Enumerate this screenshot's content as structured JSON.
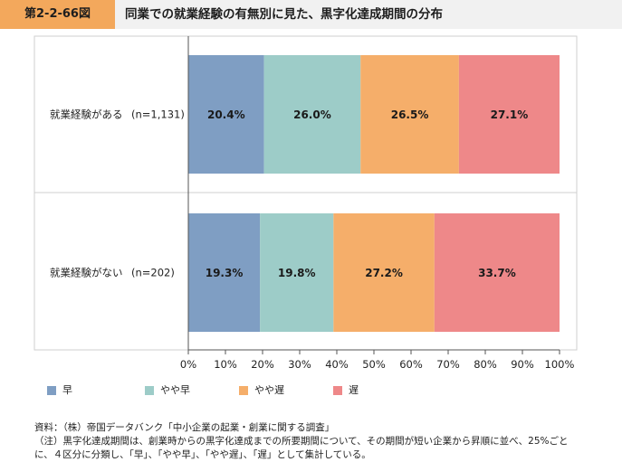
{
  "header": {
    "figure_number": "第2-2-66図",
    "title": "同業での就業経験の有無別に見た、黒字化達成期間の分布"
  },
  "chart_data": {
    "type": "bar",
    "orientation": "horizontal",
    "stacked": true,
    "percent": true,
    "categories": [
      "就業経験がある",
      "就業経験がない"
    ],
    "category_counts": [
      "(n=1,131)",
      "(n=202)"
    ],
    "series": [
      {
        "name": "早",
        "values": [
          20.4,
          19.3
        ],
        "labels": [
          "20.4%",
          "19.3%"
        ],
        "color": "#7f9ec3"
      },
      {
        "name": "やや早",
        "values": [
          26.0,
          19.8
        ],
        "labels": [
          "26.0%",
          "19.8%"
        ],
        "color": "#9dccc8"
      },
      {
        "name": "やや遅",
        "values": [
          26.5,
          27.2
        ],
        "labels": [
          "26.5%",
          "27.2%"
        ],
        "color": "#f5ae6a"
      },
      {
        "name": "遅",
        "values": [
          27.1,
          33.7
        ],
        "labels": [
          "27.1%",
          "33.7%"
        ],
        "color": "#ee8889"
      }
    ],
    "xlim": [
      0,
      100
    ],
    "x_ticks": [
      "0%",
      "10%",
      "20%",
      "30%",
      "40%",
      "50%",
      "60%",
      "70%",
      "80%",
      "90%",
      "100%"
    ],
    "legend_position": "bottom-left",
    "grid": false
  },
  "notes": {
    "source": "資料：（株）帝国データバンク「中小企業の起業・創業に関する調査」",
    "note_line1": "（注）黒字化達成期間は、創業時からの黒字化達成までの所要期間について、その期間が短い企業から昇順に並べ、25%ごと",
    "note_line2": "に、４区分に分類し、「早」、「やや早」、「やや遅」、「遅」として集計している。"
  }
}
